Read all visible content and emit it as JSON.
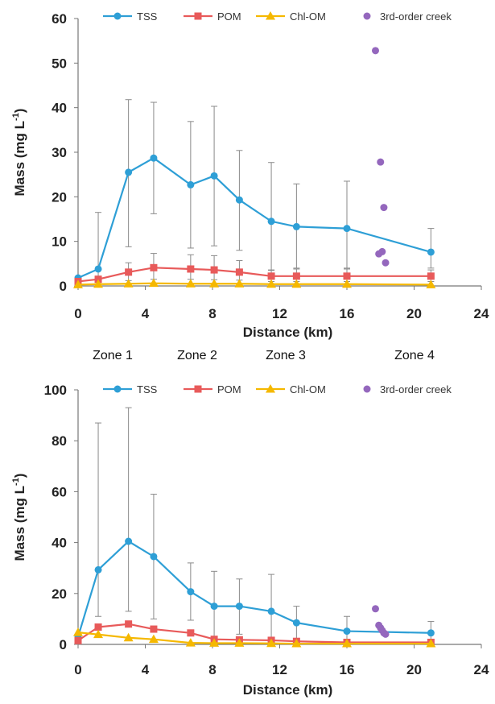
{
  "chart_data": [
    {
      "type": "line",
      "xlabel": "Distance (km)",
      "ylabel": "Mass (mg L",
      "ylabel_sup": "-1",
      "ylabel_close": ")",
      "xlim": [
        0,
        24
      ],
      "ylim": [
        0,
        60
      ],
      "xticks": [
        "0",
        "4",
        "8",
        "12",
        "16",
        "20",
        "24"
      ],
      "xtick_values": [
        0,
        4,
        8,
        12,
        16,
        20,
        24
      ],
      "yticks": [
        "0",
        "10",
        "20",
        "30",
        "40",
        "50",
        "60"
      ],
      "ytick_values": [
        0,
        10,
        20,
        30,
        40,
        50,
        60
      ],
      "legend_placement": "top",
      "series": [
        {
          "name": "TSS",
          "color": "#2e9fd6",
          "marker": "circle",
          "x": [
            0,
            1.2,
            3,
            4.5,
            6.7,
            8.1,
            9.6,
            11.5,
            13,
            16,
            21
          ],
          "values": [
            1.8,
            3.8,
            25.5,
            28.7,
            22.7,
            24.7,
            19.3,
            14.5,
            13.3,
            12.9,
            7.6
          ],
          "err_low": [
            0,
            0,
            8.8,
            16.2,
            8.5,
            9.0,
            8.0,
            3.5,
            4.0,
            4.0,
            4.0
          ],
          "err_high": [
            1.8,
            16.5,
            41.8,
            41.2,
            36.9,
            40.3,
            30.4,
            27.7,
            22.9,
            23.5,
            12.9
          ]
        },
        {
          "name": "POM",
          "color": "#e85a5a",
          "marker": "square",
          "x": [
            0,
            1.2,
            3,
            4.5,
            6.7,
            8.1,
            9.6,
            11.5,
            13,
            16,
            21
          ],
          "values": [
            1.0,
            1.5,
            3.1,
            4.1,
            3.8,
            3.6,
            3.1,
            2.2,
            2.2,
            2.2,
            2.2
          ],
          "err_low": [
            0.5,
            0.8,
            1.2,
            1.5,
            1.5,
            1.4,
            1.3,
            1.0,
            1.0,
            1.0,
            1.0
          ],
          "err_high": [
            1.5,
            2.2,
            5.2,
            7.3,
            7.0,
            6.8,
            5.7,
            3.6,
            3.8,
            3.8,
            3.6
          ]
        },
        {
          "name": "Chl-OM",
          "color": "#f5b800",
          "marker": "triangle",
          "x": [
            0,
            1.2,
            3,
            4.5,
            6.7,
            8.1,
            9.6,
            11.5,
            13,
            16,
            21
          ],
          "values": [
            0.3,
            0.4,
            0.5,
            0.6,
            0.5,
            0.5,
            0.5,
            0.4,
            0.4,
            0.4,
            0.3
          ],
          "err_low": [],
          "err_high": []
        },
        {
          "name": "3rd-order creek",
          "color": "#9467bd",
          "marker": "circle",
          "scatter": true,
          "x": [
            17.7,
            17.9,
            18.0,
            18.1,
            18.2,
            18.3
          ],
          "values": [
            52.8,
            7.2,
            27.8,
            7.7,
            17.6,
            5.2
          ]
        }
      ]
    },
    {
      "type": "line",
      "xlabel": "Distance (km)",
      "ylabel": "Mass (mg L",
      "ylabel_sup": "-1",
      "ylabel_close": ")",
      "xlim": [
        0,
        24
      ],
      "ylim": [
        0,
        100
      ],
      "xticks": [
        "0",
        "4",
        "8",
        "12",
        "16",
        "20",
        "24"
      ],
      "xtick_values": [
        0,
        4,
        8,
        12,
        16,
        20,
        24
      ],
      "yticks": [
        "0",
        "20",
        "40",
        "60",
        "80",
        "100"
      ],
      "ytick_values": [
        0,
        20,
        40,
        60,
        80,
        100
      ],
      "legend_placement": "top",
      "series": [
        {
          "name": "TSS",
          "color": "#2e9fd6",
          "marker": "circle",
          "x": [
            0,
            1.2,
            3,
            4.5,
            6.7,
            8.1,
            9.6,
            11.5,
            13,
            16,
            21
          ],
          "values": [
            3.0,
            29.3,
            40.5,
            34.5,
            20.7,
            15.0,
            15.0,
            13.0,
            8.5,
            5.2,
            4.5
          ],
          "err_low": [
            0,
            11.0,
            13.0,
            10.0,
            9.5,
            3.0,
            4.0,
            1.5,
            2.0,
            1.0,
            0.5
          ],
          "err_high": [
            3.5,
            87.0,
            93.0,
            59.0,
            32.0,
            28.7,
            25.7,
            27.5,
            15.0,
            11.0,
            9.0
          ]
        },
        {
          "name": "POM",
          "color": "#e85a5a",
          "marker": "square",
          "x": [
            0,
            1.2,
            3,
            4.5,
            6.7,
            8.1,
            9.6,
            11.5,
            13,
            16,
            21
          ],
          "values": [
            1.5,
            6.8,
            8.0,
            6.0,
            4.5,
            2.0,
            1.8,
            1.6,
            1.2,
            0.8,
            0.8
          ],
          "err_low": [],
          "err_high": []
        },
        {
          "name": "Chl-OM",
          "color": "#f5b800",
          "marker": "triangle",
          "x": [
            0,
            1.2,
            3,
            4.5,
            6.7,
            8.1,
            9.6,
            11.5,
            13,
            16,
            21
          ],
          "values": [
            4.7,
            3.9,
            2.6,
            2.0,
            0.6,
            0.5,
            0.5,
            0.4,
            0.3,
            0.3,
            0.3
          ],
          "err_low": [],
          "err_high": []
        },
        {
          "name": "3rd-order creek",
          "color": "#9467bd",
          "marker": "circle",
          "scatter": true,
          "x": [
            17.7,
            17.9,
            18.0,
            18.1,
            18.2,
            18.3
          ],
          "values": [
            14.0,
            7.5,
            6.5,
            5.5,
            4.5,
            4.0
          ]
        }
      ]
    }
  ],
  "zones": [
    "Zone 1",
    "Zone 2",
    "Zone 3",
    "Zone 4"
  ]
}
